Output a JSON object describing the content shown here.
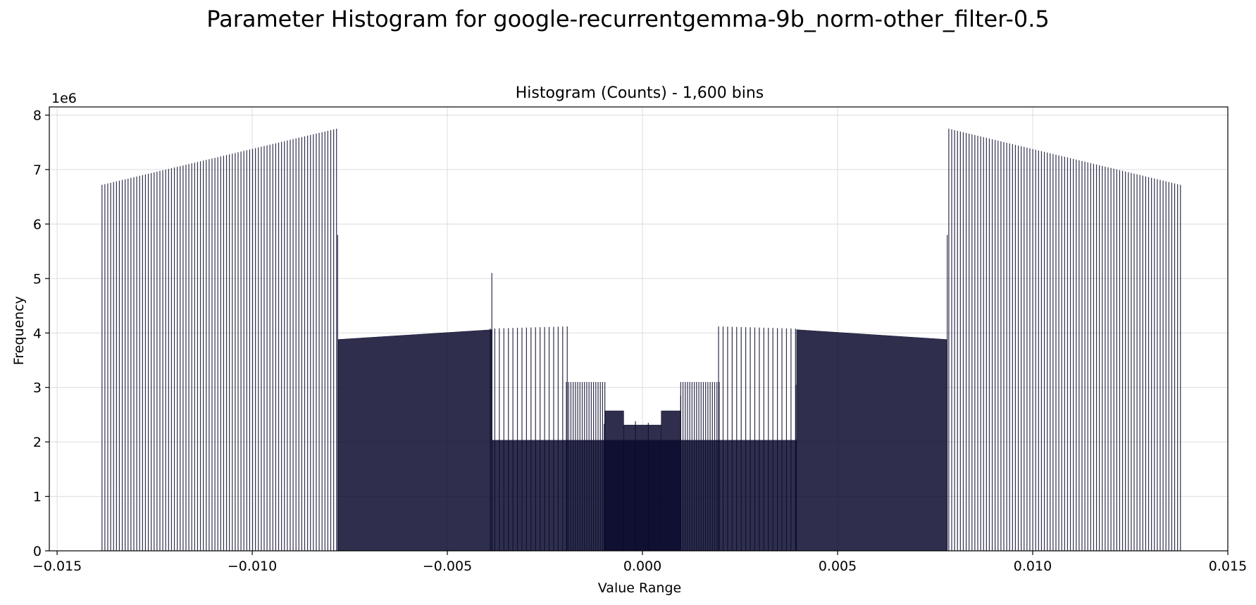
{
  "figure_title": "Parameter Histogram for google-recurrentgemma-9b_norm-other_filter-0.5",
  "chart_data": {
    "type": "bar",
    "title": "Histogram (Counts) - 1,600 bins",
    "xlabel": "Value Range",
    "ylabel": "Frequency",
    "y_multiplier_label": "1e6",
    "xlim": [
      -0.0152,
      0.015
    ],
    "ylim": [
      0,
      8.15
    ],
    "x_ticks": [
      -0.015,
      -0.01,
      -0.005,
      0.0,
      0.005,
      0.01,
      0.015
    ],
    "x_tick_labels": [
      "−0.015",
      "−0.010",
      "−0.005",
      "0.000",
      "0.005",
      "0.010",
      "0.015"
    ],
    "y_ticks": [
      0,
      1,
      2,
      3,
      4,
      5,
      6,
      7,
      8
    ],
    "y_tick_labels": [
      "0",
      "1",
      "2",
      "3",
      "4",
      "5",
      "6",
      "7",
      "8"
    ],
    "grid": true,
    "bar_color": "#0b0b2e",
    "bar_alpha": 0.85,
    "bar_width": 1.88e-05,
    "comb_segments": [
      {
        "from": -0.01385,
        "to": -0.00785,
        "step": 7.42e-05,
        "y_start": 6.72,
        "y_end": 7.75
      },
      {
        "from": -0.0039,
        "to": -0.00195,
        "step": 0.000116,
        "y_start": 4.08,
        "y_end": 4.12
      },
      {
        "from": -0.00195,
        "to": -0.00098,
        "step": 5.8e-05,
        "y_start": 3.1,
        "y_end": 3.1
      },
      {
        "from": 0.00098,
        "to": 0.00195,
        "step": 5.8e-05,
        "y_start": 3.1,
        "y_end": 3.1
      },
      {
        "from": 0.00195,
        "to": 0.0039,
        "step": 0.000116,
        "y_start": 4.12,
        "y_end": 4.08
      },
      {
        "from": 0.00785,
        "to": 0.01375,
        "step": 7.42e-05,
        "y_start": 7.75,
        "y_end": 6.72
      }
    ],
    "filled_segments": [
      {
        "from": -0.0078,
        "to": -0.00385,
        "y_start": 3.88,
        "y_end": 4.06
      },
      {
        "from": -0.00385,
        "to": 0.00395,
        "y_start": 2.03,
        "y_end": 2.03
      },
      {
        "from": 0.00395,
        "to": 0.0078,
        "y_start": 4.06,
        "y_end": 3.88
      },
      {
        "from": -0.00097,
        "to": -0.00048,
        "y_start": 2.57,
        "y_end": 2.57
      },
      {
        "from": -0.00048,
        "to": 0.00048,
        "y_start": 2.31,
        "y_end": 2.31
      },
      {
        "from": 0.00048,
        "to": 0.00097,
        "y_start": 2.57,
        "y_end": 2.57
      }
    ],
    "spikes": [
      {
        "x": -0.00386,
        "y": 5.1
      },
      {
        "x": -0.00781,
        "y": 5.8
      },
      {
        "x": 0.00781,
        "y": 5.8
      },
      {
        "x": 0.00393,
        "y": 3.05
      },
      {
        "x": -0.00098,
        "y": 2.33
      },
      {
        "x": 0.00098,
        "y": 2.85
      },
      {
        "x": -0.00018,
        "y": 2.38
      },
      {
        "x": 0.00015,
        "y": 2.35
      }
    ]
  }
}
